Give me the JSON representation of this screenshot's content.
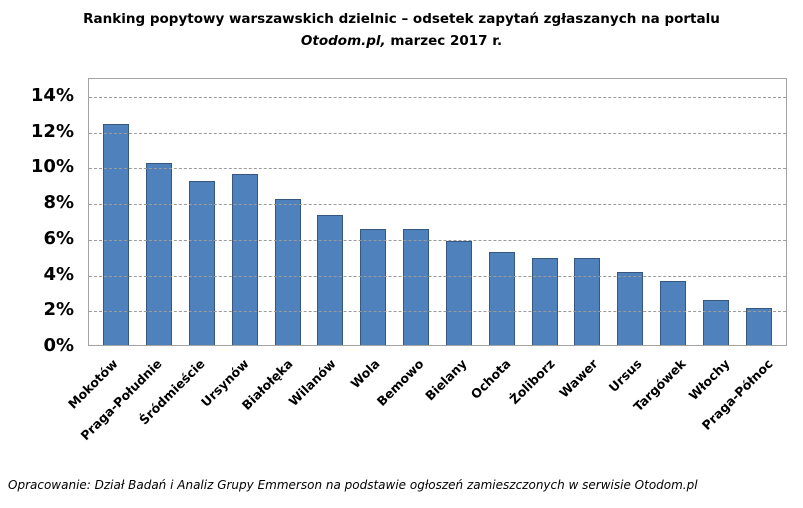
{
  "title": {
    "line1": "Ranking popytowy warszawskich dzielnic – odsetek zapytań zgłaszanych na portalu",
    "line2_italic": "Otodom.pl,",
    "line2_rest": " marzec 2017 r."
  },
  "footer": {
    "text": "Opracowanie: Dział Badań i Analiz Grupy Emmerson na podstawie ogłoszeń zamieszczonych w serwisie Otodom.pl"
  },
  "chart_data": {
    "type": "bar",
    "title": "Ranking popytowy warszawskich dzielnic – odsetek zapytań zgłaszanych na portalu Otodom.pl, marzec 2017 r.",
    "categories": [
      "Mokotów",
      "Praga-Południe",
      "Śródmieście",
      "Ursynów",
      "Białołęka",
      "Wilanów",
      "Wola",
      "Bemowo",
      "Bielany",
      "Ochota",
      "Żoliborz",
      "Wawer",
      "Ursus",
      "Targówek",
      "Włochy",
      "Praga-Północ"
    ],
    "values": [
      12.4,
      10.2,
      9.2,
      9.6,
      8.2,
      7.3,
      6.5,
      6.5,
      5.8,
      5.2,
      4.9,
      4.9,
      4.1,
      3.6,
      2.5,
      2.1
    ],
    "unit": "%",
    "xlabel": "",
    "ylabel": "",
    "ylim": [
      0,
      15
    ],
    "y_tick_labels": [
      "0%",
      "2%",
      "4%",
      "6%",
      "8%",
      "10%",
      "12%",
      "14%"
    ],
    "grid": "horizontal-dashed",
    "legend": "none",
    "bar_color": "#4f81bd",
    "bar_border_color": "#36587f"
  }
}
